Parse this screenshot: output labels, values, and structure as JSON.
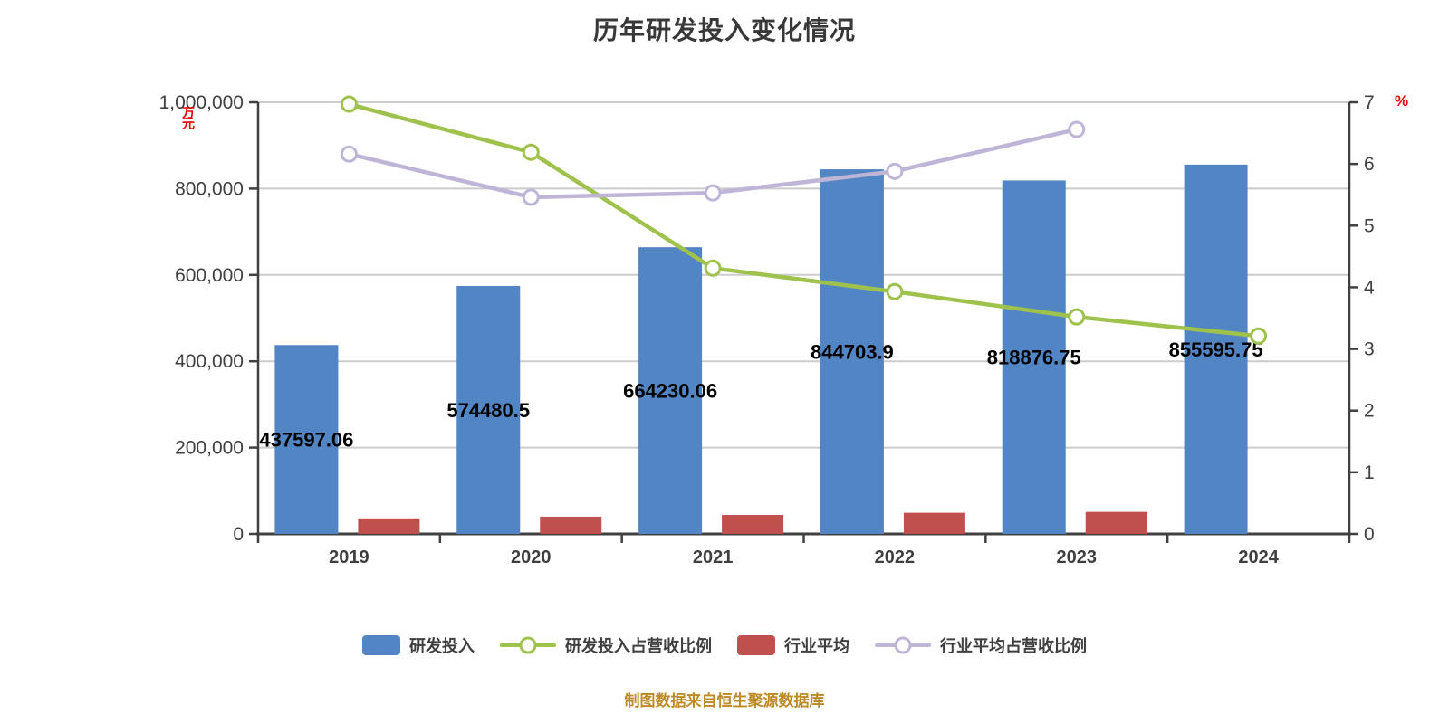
{
  "footer": "制图数据来自恒生聚源数据库",
  "chart_data": {
    "type": "combo-bar-line",
    "title": "历年研发投入变化情况",
    "categories": [
      "2019",
      "2020",
      "2021",
      "2022",
      "2023",
      "2024"
    ],
    "left_axis": {
      "unit": "万元",
      "min": 0,
      "max": 1000000,
      "tick_step": 200000,
      "tick_labels": [
        "1,000,000",
        "800,000",
        "600,000",
        "400,000",
        "200,000",
        "0"
      ]
    },
    "right_axis": {
      "unit": "%",
      "min": 0,
      "max": 7,
      "tick_step": 1,
      "tick_labels": [
        "7",
        "6",
        "5",
        "4",
        "3",
        "2",
        "1",
        "0"
      ]
    },
    "grid": true,
    "legend_position": "bottom",
    "series": [
      {
        "name": "研发投入",
        "type": "bar",
        "axis": "left",
        "color": "#5285c4",
        "values": [
          437597.06,
          574480.5,
          664230.06,
          844703.9,
          818876.75,
          855595.75
        ],
        "labels": [
          "437597.06",
          "574480.5",
          "664230.06",
          "844703.9",
          "818876.75",
          "855595.75"
        ]
      },
      {
        "name": "研发投入占营收比例",
        "type": "line",
        "axis": "right",
        "color": "#9fc24d",
        "values": [
          6.97,
          6.19,
          4.31,
          3.93,
          3.52,
          3.21
        ]
      },
      {
        "name": "行业平均",
        "type": "bar",
        "axis": "left",
        "color": "#c0504d",
        "values": [
          36000,
          40000,
          44000,
          49000,
          51000,
          null
        ]
      },
      {
        "name": "行业平均占营收比例",
        "type": "line",
        "axis": "right",
        "color": "#bfb5d7",
        "values": [
          6.16,
          5.46,
          5.53,
          5.88,
          6.56,
          null
        ]
      }
    ]
  },
  "legend": [
    {
      "label": "研发投入",
      "marker": "bar",
      "color": "#5285c4"
    },
    {
      "label": "研发投入占营收比例",
      "marker": "line",
      "color": "#9fc24d"
    },
    {
      "label": "行业平均",
      "marker": "bar",
      "color": "#c0504d"
    },
    {
      "label": "行业平均占营收比例",
      "marker": "line",
      "color": "#bfb5d7"
    }
  ]
}
